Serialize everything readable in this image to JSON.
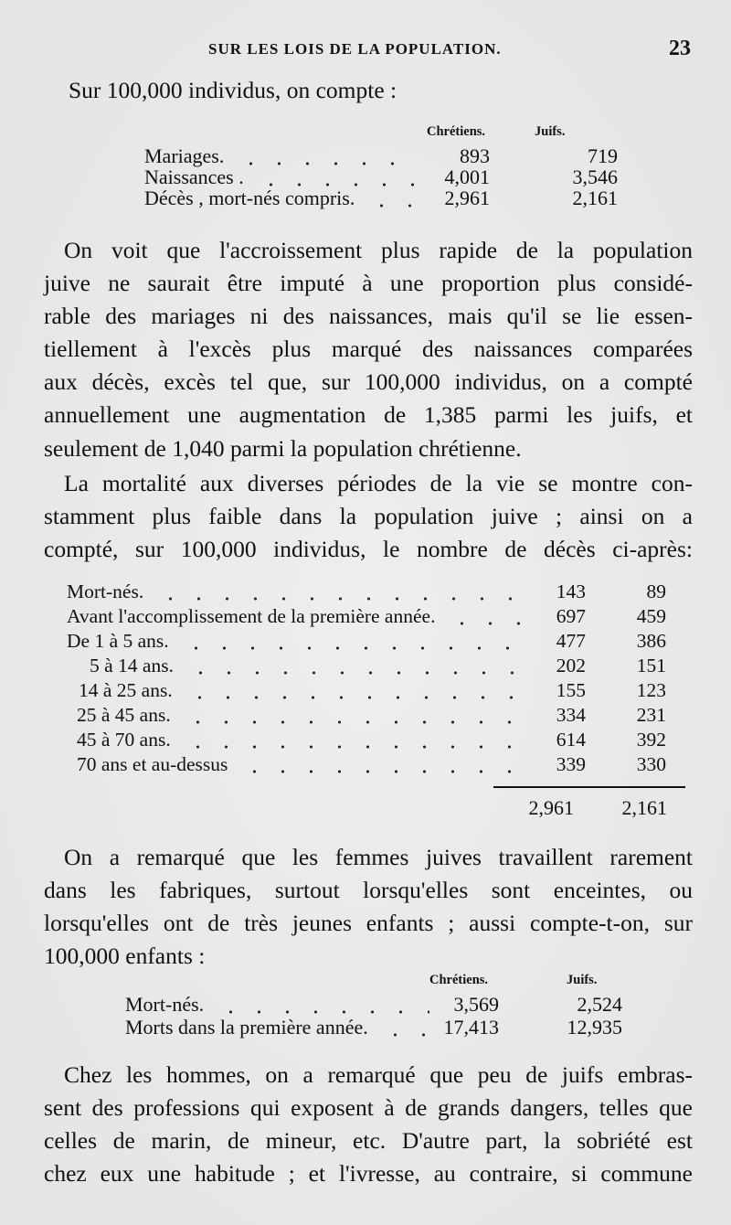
{
  "header": {
    "running_title": "SUR LES LOIS DE LA POPULATION.",
    "page_number": "23"
  },
  "intro": "Sur 100,000 individus, on compte :",
  "table1": {
    "columns": [
      "Chrétiens.",
      "Juifs."
    ],
    "rows": [
      {
        "label": "Mariages.",
        "values": [
          "893",
          "719"
        ]
      },
      {
        "label": "Naissances .",
        "values": [
          "4,001",
          "3,546"
        ]
      },
      {
        "label": "Décès , mort-nés compris.",
        "values": [
          "2,961",
          "2,161"
        ]
      }
    ]
  },
  "paragraph1": [
    "On voit que l'accroissement plus rapide de la population",
    "juive ne saurait être imputé à une proportion plus considé-",
    "rable des mariages ni des naissances, mais qu'il se lie essen-",
    "tiellement à l'excès plus marqué des naissances comparées",
    "aux décès, excès tel que, sur 100,000 individus, on a compté",
    "annuellement une augmentation de 1,385 parmi les juifs, et",
    "seulement de 1,040 parmi la population chrétienne."
  ],
  "paragraph2": [
    "La mortalité aux diverses périodes de la vie se montre con-",
    "stamment plus faible dans la population juive ; ainsi on a",
    "compté, sur 100,000 individus, le nombre de décès ci-après:"
  ],
  "table2": {
    "rows": [
      {
        "label": "Mort-nés.",
        "values": [
          "143",
          "89"
        ]
      },
      {
        "label": "Avant l'accomplissement de la première année.",
        "values": [
          "697",
          "459"
        ]
      },
      {
        "label": "De 1 à 5 ans.",
        "values": [
          "477",
          "386"
        ]
      },
      {
        "label": "5 à 14 ans.",
        "values": [
          "202",
          "151"
        ]
      },
      {
        "label": "14 à 25 ans.",
        "values": [
          "155",
          "123"
        ]
      },
      {
        "label": "25 à 45 ans.",
        "values": [
          "334",
          "231"
        ]
      },
      {
        "label": "45 à 70 ans.",
        "values": [
          "614",
          "392"
        ]
      },
      {
        "label": "70 ans et au-dessus",
        "values": [
          "339",
          "330"
        ]
      }
    ],
    "totals": [
      "2,961",
      "2,161"
    ]
  },
  "paragraph3": [
    "On a remarqué que les femmes juives travaillent rarement",
    "dans les fabriques, surtout lorsqu'elles sont enceintes, ou",
    "lorsqu'elles ont de très jeunes enfants ; aussi compte-t-on, sur",
    "100,000 enfants :"
  ],
  "table3": {
    "columns": [
      "Chrétiens.",
      "Juifs."
    ],
    "rows": [
      {
        "label": "Mort-nés.",
        "values": [
          "3,569",
          "2,524"
        ]
      },
      {
        "label": "Morts dans la première année.",
        "values": [
          "17,413",
          "12,935"
        ]
      }
    ]
  },
  "paragraph4": [
    "Chez les hommes, on a remarqué que peu de juifs embras-",
    "sent des professions qui exposent à de grands dangers, telles que",
    "celles de marin, de mineur, etc. D'autre part, la sobriété est",
    "chez eux une habitude ; et l'ivresse, au contraire, si commune"
  ]
}
